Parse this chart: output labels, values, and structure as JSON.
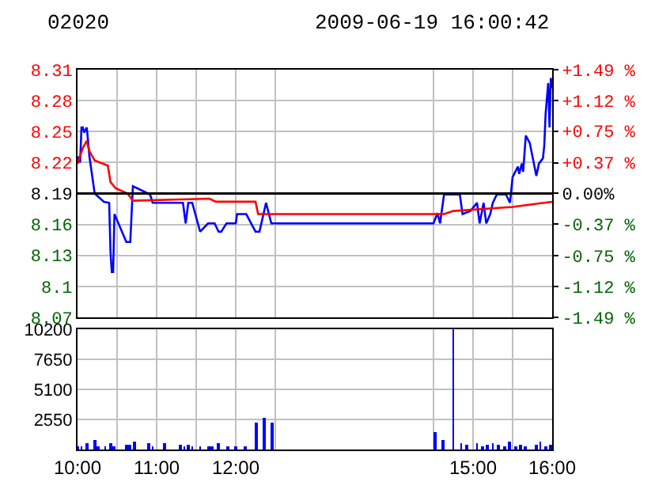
{
  "chart_data": [
    {
      "type": "line",
      "title": "02020",
      "subtitle": "2009-06-19 16:00:42",
      "grid": true,
      "tick_labels": "y",
      "xlim": [
        10,
        16
      ],
      "xticks": [
        {
          "value": 10,
          "label": null
        },
        {
          "value": 10.5,
          "label": null
        },
        {
          "value": 11,
          "label": null
        },
        {
          "value": 11.5,
          "label": null
        },
        {
          "value": 12,
          "label": null
        },
        {
          "value": 12.5,
          "label": null
        },
        {
          "value": 14.5,
          "label": null
        },
        {
          "value": 15,
          "label": null
        },
        {
          "value": 15.5,
          "label": null
        },
        {
          "value": 16,
          "label": null
        }
      ],
      "ylim": [
        8.07,
        8.31
      ],
      "yticks": [
        8.07,
        8.1,
        8.13,
        8.16,
        8.19,
        8.22,
        8.25,
        8.28,
        8.31
      ],
      "y2lim": [
        -1.49,
        1.49
      ],
      "y2ticks": [
        {
          "value": -1.49,
          "label": "-1.49 %"
        },
        {
          "value": -1.12,
          "label": "-1.12 %"
        },
        {
          "value": -0.75,
          "label": "-0.75 %"
        },
        {
          "value": -0.37,
          "label": "-0.37 %"
        },
        {
          "value": 0,
          "label": "0.00%"
        },
        {
          "value": 0.37,
          "label": "+0.37 %"
        },
        {
          "value": 0.75,
          "label": "+0.75 %"
        },
        {
          "value": 1.12,
          "label": "+1.12 %"
        },
        {
          "value": 1.49,
          "label": "+1.49 %"
        }
      ],
      "ref_lines": [
        {
          "axis": "y",
          "value": 8.19,
          "color": "#000000"
        }
      ],
      "series": [
        {
          "color": "#0000ff",
          "x": [
            10,
            10.017,
            10.033,
            10.05,
            10.067,
            10.083,
            10.117,
            10.133,
            10.15,
            10.217,
            10.333,
            10.4,
            10.417,
            10.433,
            10.45,
            10.467,
            10.617,
            10.667,
            10.7,
            10.917,
            10.95,
            11.333,
            11.367,
            11.4,
            11.45,
            11.55,
            11.65,
            11.733,
            11.783,
            11.817,
            11.883,
            12,
            12.017,
            12.133,
            12.25,
            12.3,
            12.383,
            12.45,
            14.5,
            14.55,
            14.583,
            14.633,
            14.833,
            14.867,
            14.967,
            15.05,
            15.083,
            15.133,
            15.167,
            15.217,
            15.25,
            15.3,
            15.417,
            15.467,
            15.5,
            15.567,
            15.583,
            15.617,
            15.633,
            15.667,
            15.717,
            15.8,
            15.833,
            15.883,
            15.9,
            15.917,
            15.95,
            15.967,
            15.983,
            16
          ],
          "values": [
            8.219,
            8.226,
            8.22,
            8.254,
            8.254,
            8.249,
            8.254,
            8.241,
            8.226,
            8.19,
            8.182,
            8.181,
            8.133,
            8.114,
            8.114,
            8.17,
            8.143,
            8.143,
            8.197,
            8.189,
            8.181,
            8.181,
            8.161,
            8.181,
            8.181,
            8.153,
            8.161,
            8.161,
            8.153,
            8.153,
            8.161,
            8.161,
            8.17,
            8.17,
            8.153,
            8.153,
            8.181,
            8.161,
            8.161,
            8.171,
            8.161,
            8.189,
            8.189,
            8.17,
            8.173,
            8.181,
            8.161,
            8.181,
            8.161,
            8.17,
            8.181,
            8.189,
            8.189,
            8.181,
            8.206,
            8.216,
            8.209,
            8.219,
            8.211,
            8.246,
            8.239,
            8.207,
            8.219,
            8.224,
            8.236,
            8.267,
            8.297,
            8.254,
            8.302,
            8.292
          ]
        },
        {
          "color": "#ff0000",
          "x": [
            10,
            10.067,
            10.117,
            10.15,
            10.217,
            10.383,
            10.417,
            10.483,
            10.633,
            10.7,
            11.667,
            11.75,
            12,
            12.25,
            12.283,
            14.633,
            14.75,
            15.5,
            15.8,
            16
          ],
          "values": [
            8.219,
            8.234,
            8.241,
            8.231,
            8.222,
            8.217,
            8.201,
            8.195,
            8.19,
            8.183,
            8.185,
            8.182,
            8.182,
            8.182,
            8.17,
            8.17,
            8.173,
            8.177,
            8.18,
            8.182
          ]
        }
      ]
    },
    {
      "type": "bar",
      "grid": true,
      "color": "#0000ff",
      "xlim": [
        10,
        16
      ],
      "xticks": [
        {
          "value": 10,
          "label": "10:00"
        },
        {
          "value": 10.5,
          "label": null
        },
        {
          "value": 11,
          "label": "11:00"
        },
        {
          "value": 11.5,
          "label": null
        },
        {
          "value": 12,
          "label": "12:00"
        },
        {
          "value": 12.5,
          "label": null
        },
        {
          "value": 14.5,
          "label": null
        },
        {
          "value": 15,
          "label": "15:00"
        },
        {
          "value": 15.5,
          "label": null
        },
        {
          "value": 16,
          "label": "16:00"
        }
      ],
      "ylim": [
        0,
        10200
      ],
      "yticks": [
        2550,
        5100,
        7650,
        10200
      ],
      "x": [
        10,
        10.05,
        10.117,
        10.217,
        10.267,
        10.35,
        10.417,
        10.467,
        10.617,
        10.667,
        10.717,
        10.9,
        10.95,
        11.1,
        11.3,
        11.35,
        11.4,
        11.45,
        11.55,
        11.667,
        11.7,
        11.783,
        11.9,
        12,
        12.117,
        12.267,
        12.367,
        12.467,
        14.517,
        14.617,
        14.75,
        14.85,
        14.917,
        15.05,
        15.117,
        15.183,
        15.25,
        15.317,
        15.4,
        15.467,
        15.533,
        15.6,
        15.667,
        15.8,
        15.85,
        15.917,
        15.983
      ],
      "values": [
        300,
        300,
        500,
        800,
        300,
        300,
        500,
        300,
        400,
        400,
        700,
        500,
        300,
        500,
        400,
        300,
        400,
        300,
        300,
        300,
        300,
        500,
        300,
        300,
        300,
        2200,
        2700,
        2200,
        1500,
        800,
        10200,
        500,
        400,
        500,
        300,
        400,
        500,
        400,
        300,
        700,
        300,
        400,
        300,
        400,
        700,
        300,
        400
      ]
    }
  ]
}
